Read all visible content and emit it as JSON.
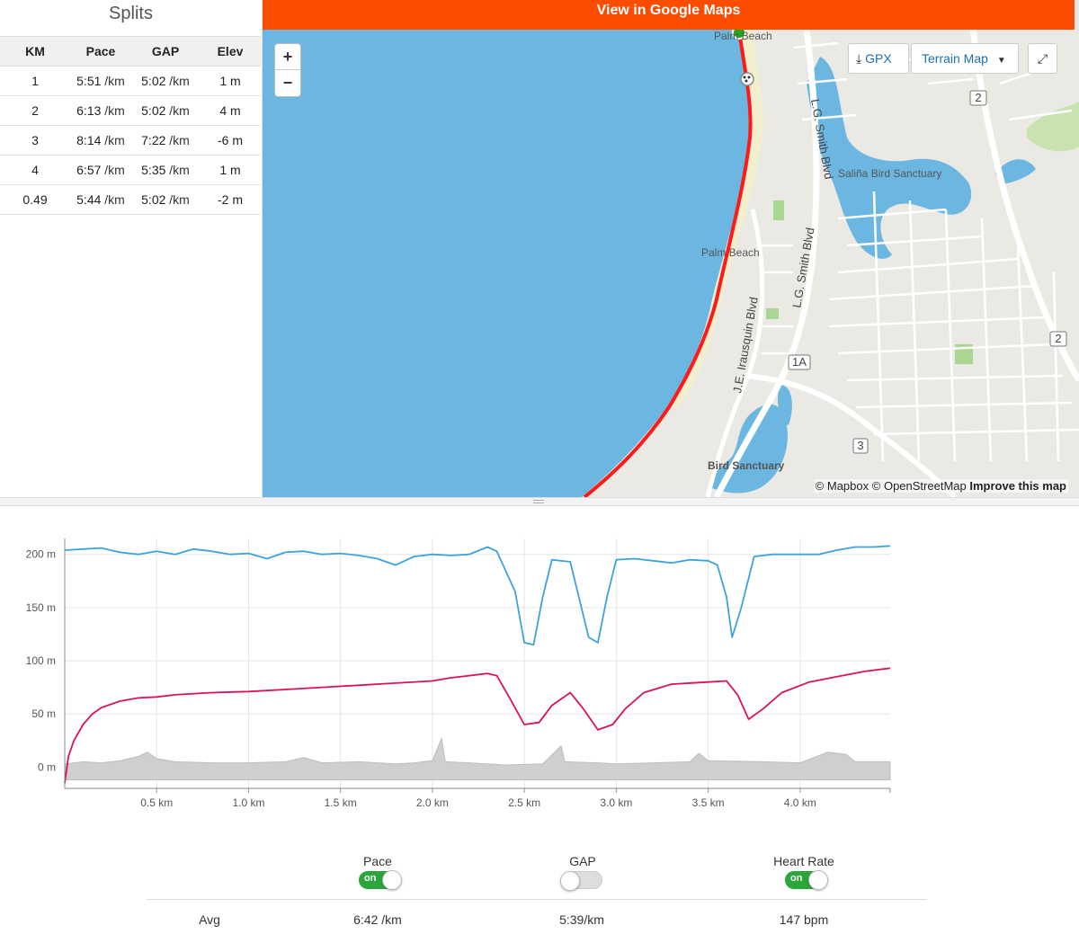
{
  "splits": {
    "title": "Splits",
    "headers": [
      "KM",
      "Pace",
      "GAP",
      "Elev"
    ],
    "rows": [
      {
        "km": "1",
        "pace": "5:51",
        "pace_unit": "/km",
        "gap": "5:02",
        "gap_unit": "/km",
        "elev": "1 m"
      },
      {
        "km": "2",
        "pace": "6:13",
        "pace_unit": "/km",
        "gap": "5:02",
        "gap_unit": "/km",
        "elev": "4 m"
      },
      {
        "km": "3",
        "pace": "8:14",
        "pace_unit": "/km",
        "gap": "7:22",
        "gap_unit": "/km",
        "elev": "-6 m"
      },
      {
        "km": "4",
        "pace": "6:57",
        "pace_unit": "/km",
        "gap": "5:35",
        "gap_unit": "/km",
        "elev": "1 m"
      },
      {
        "km": "0.49",
        "pace": "5:44",
        "pace_unit": "/km",
        "gap": "5:02",
        "gap_unit": "/km",
        "elev": "-2 m"
      }
    ]
  },
  "map": {
    "google_maps_label": "View in Google Maps",
    "zoom_in": "+",
    "zoom_out": "−",
    "gpx_label": "GPX",
    "terrain_label": "Terrain Map",
    "attribution_mapbox": "© Mapbox",
    "attribution_osm": "© OpenStreetMap",
    "improve_label": "Improve this map",
    "labels": {
      "palm_beach_top": "Palm Beach",
      "palm_beach": "Palm Beach",
      "lg_smith_1": "L.G. Smith Blvd",
      "lg_smith_2": "L.G. Smith Blvd",
      "irausquin": "J.E. Irausquin Blvd",
      "salina": "Saliña Bird Sanctuary",
      "bird_sanctuary": "Bird Sanctuary",
      "route_2a": "2",
      "route_2b": "2",
      "route_1a": "1A",
      "route_3": "3"
    },
    "colors": {
      "water": "#6cb7e2",
      "land": "#eae9e4",
      "route": "#ff1a1a",
      "park": "#a9d693",
      "sand": "#f2efcf"
    }
  },
  "chart_data": {
    "type": "line",
    "x_unit": "km",
    "xlim": [
      0,
      4.49
    ],
    "ylim": [
      -20,
      215
    ],
    "x_ticks": [
      "0.5 km",
      "1.0 km",
      "1.5 km",
      "2.0 km",
      "2.5 km",
      "3.0 km",
      "3.5 km",
      "4.0 km"
    ],
    "x_tick_values": [
      0.5,
      1.0,
      1.5,
      2.0,
      2.5,
      3.0,
      3.5,
      4.0
    ],
    "y_ticks": [
      "0 m",
      "50 m",
      "100 m",
      "150 m",
      "200 m"
    ],
    "y_tick_values": [
      0,
      50,
      100,
      150,
      200
    ],
    "grid": true,
    "series": [
      {
        "name": "Pace",
        "color": "#3ea3d8",
        "points": [
          [
            0,
            204
          ],
          [
            0.1,
            205
          ],
          [
            0.2,
            206
          ],
          [
            0.3,
            202
          ],
          [
            0.4,
            200
          ],
          [
            0.5,
            203
          ],
          [
            0.6,
            200
          ],
          [
            0.7,
            205
          ],
          [
            0.8,
            203
          ],
          [
            0.9,
            200
          ],
          [
            1.0,
            201
          ],
          [
            1.1,
            196
          ],
          [
            1.2,
            202
          ],
          [
            1.3,
            203
          ],
          [
            1.4,
            200
          ],
          [
            1.5,
            201
          ],
          [
            1.6,
            199
          ],
          [
            1.7,
            196
          ],
          [
            1.8,
            190
          ],
          [
            1.9,
            198
          ],
          [
            2.0,
            200
          ],
          [
            2.1,
            199
          ],
          [
            2.2,
            200
          ],
          [
            2.3,
            207
          ],
          [
            2.35,
            203
          ],
          [
            2.45,
            165
          ],
          [
            2.5,
            117
          ],
          [
            2.55,
            115
          ],
          [
            2.6,
            160
          ],
          [
            2.65,
            195
          ],
          [
            2.75,
            193
          ],
          [
            2.85,
            122
          ],
          [
            2.9,
            117
          ],
          [
            2.95,
            160
          ],
          [
            3.0,
            195
          ],
          [
            3.1,
            196
          ],
          [
            3.2,
            194
          ],
          [
            3.3,
            192
          ],
          [
            3.4,
            195
          ],
          [
            3.5,
            194
          ],
          [
            3.55,
            190
          ],
          [
            3.6,
            160
          ],
          [
            3.63,
            122
          ],
          [
            3.68,
            150
          ],
          [
            3.75,
            198
          ],
          [
            3.85,
            200
          ],
          [
            3.95,
            200
          ],
          [
            4.1,
            200
          ],
          [
            4.2,
            204
          ],
          [
            4.3,
            207
          ],
          [
            4.4,
            207
          ],
          [
            4.49,
            208
          ]
        ]
      },
      {
        "name": "Heart Rate",
        "color": "#d9125a",
        "points": [
          [
            0,
            -15
          ],
          [
            0.02,
            10
          ],
          [
            0.05,
            25
          ],
          [
            0.1,
            40
          ],
          [
            0.15,
            50
          ],
          [
            0.2,
            56
          ],
          [
            0.3,
            62
          ],
          [
            0.4,
            65
          ],
          [
            0.5,
            66
          ],
          [
            0.6,
            68
          ],
          [
            0.8,
            70
          ],
          [
            1.0,
            71
          ],
          [
            1.2,
            73
          ],
          [
            1.4,
            75
          ],
          [
            1.6,
            77
          ],
          [
            1.8,
            79
          ],
          [
            2.0,
            81
          ],
          [
            2.1,
            84
          ],
          [
            2.2,
            86
          ],
          [
            2.3,
            88
          ],
          [
            2.35,
            86
          ],
          [
            2.42,
            65
          ],
          [
            2.5,
            40
          ],
          [
            2.58,
            42
          ],
          [
            2.65,
            58
          ],
          [
            2.75,
            70
          ],
          [
            2.82,
            55
          ],
          [
            2.9,
            35
          ],
          [
            2.98,
            40
          ],
          [
            3.05,
            55
          ],
          [
            3.15,
            70
          ],
          [
            3.3,
            78
          ],
          [
            3.5,
            80
          ],
          [
            3.6,
            81
          ],
          [
            3.66,
            68
          ],
          [
            3.72,
            45
          ],
          [
            3.8,
            55
          ],
          [
            3.9,
            70
          ],
          [
            4.05,
            80
          ],
          [
            4.2,
            85
          ],
          [
            4.35,
            90
          ],
          [
            4.49,
            93
          ]
        ]
      }
    ],
    "elevation_area": {
      "name": "Elevation",
      "color": "#cfcfcf",
      "points": [
        [
          0,
          3
        ],
        [
          0.1,
          5
        ],
        [
          0.2,
          4
        ],
        [
          0.3,
          6
        ],
        [
          0.4,
          10
        ],
        [
          0.45,
          14
        ],
        [
          0.5,
          8
        ],
        [
          0.6,
          5
        ],
        [
          0.8,
          4
        ],
        [
          1.0,
          4
        ],
        [
          1.2,
          5
        ],
        [
          1.3,
          9
        ],
        [
          1.4,
          4
        ],
        [
          1.6,
          5
        ],
        [
          1.8,
          3
        ],
        [
          1.9,
          4
        ],
        [
          2.0,
          6
        ],
        [
          2.05,
          27
        ],
        [
          2.07,
          5
        ],
        [
          2.2,
          4
        ],
        [
          2.4,
          2
        ],
        [
          2.6,
          3
        ],
        [
          2.7,
          20
        ],
        [
          2.72,
          5
        ],
        [
          2.9,
          4
        ],
        [
          3.0,
          3
        ],
        [
          3.2,
          4
        ],
        [
          3.4,
          5
        ],
        [
          3.45,
          13
        ],
        [
          3.5,
          6
        ],
        [
          3.8,
          5
        ],
        [
          4.0,
          4
        ],
        [
          4.15,
          14
        ],
        [
          4.25,
          12
        ],
        [
          4.3,
          5
        ],
        [
          4.49,
          5
        ]
      ]
    }
  },
  "controls": {
    "pace_label": "Pace",
    "gap_label": "GAP",
    "hr_label": "Heart Rate",
    "on_text": "on",
    "pace_on": true,
    "gap_on": false,
    "hr_on": true,
    "avg_label": "Avg",
    "avg_pace": "6:42 /km",
    "avg_gap": "5:39/km",
    "avg_hr": "147 bpm"
  }
}
